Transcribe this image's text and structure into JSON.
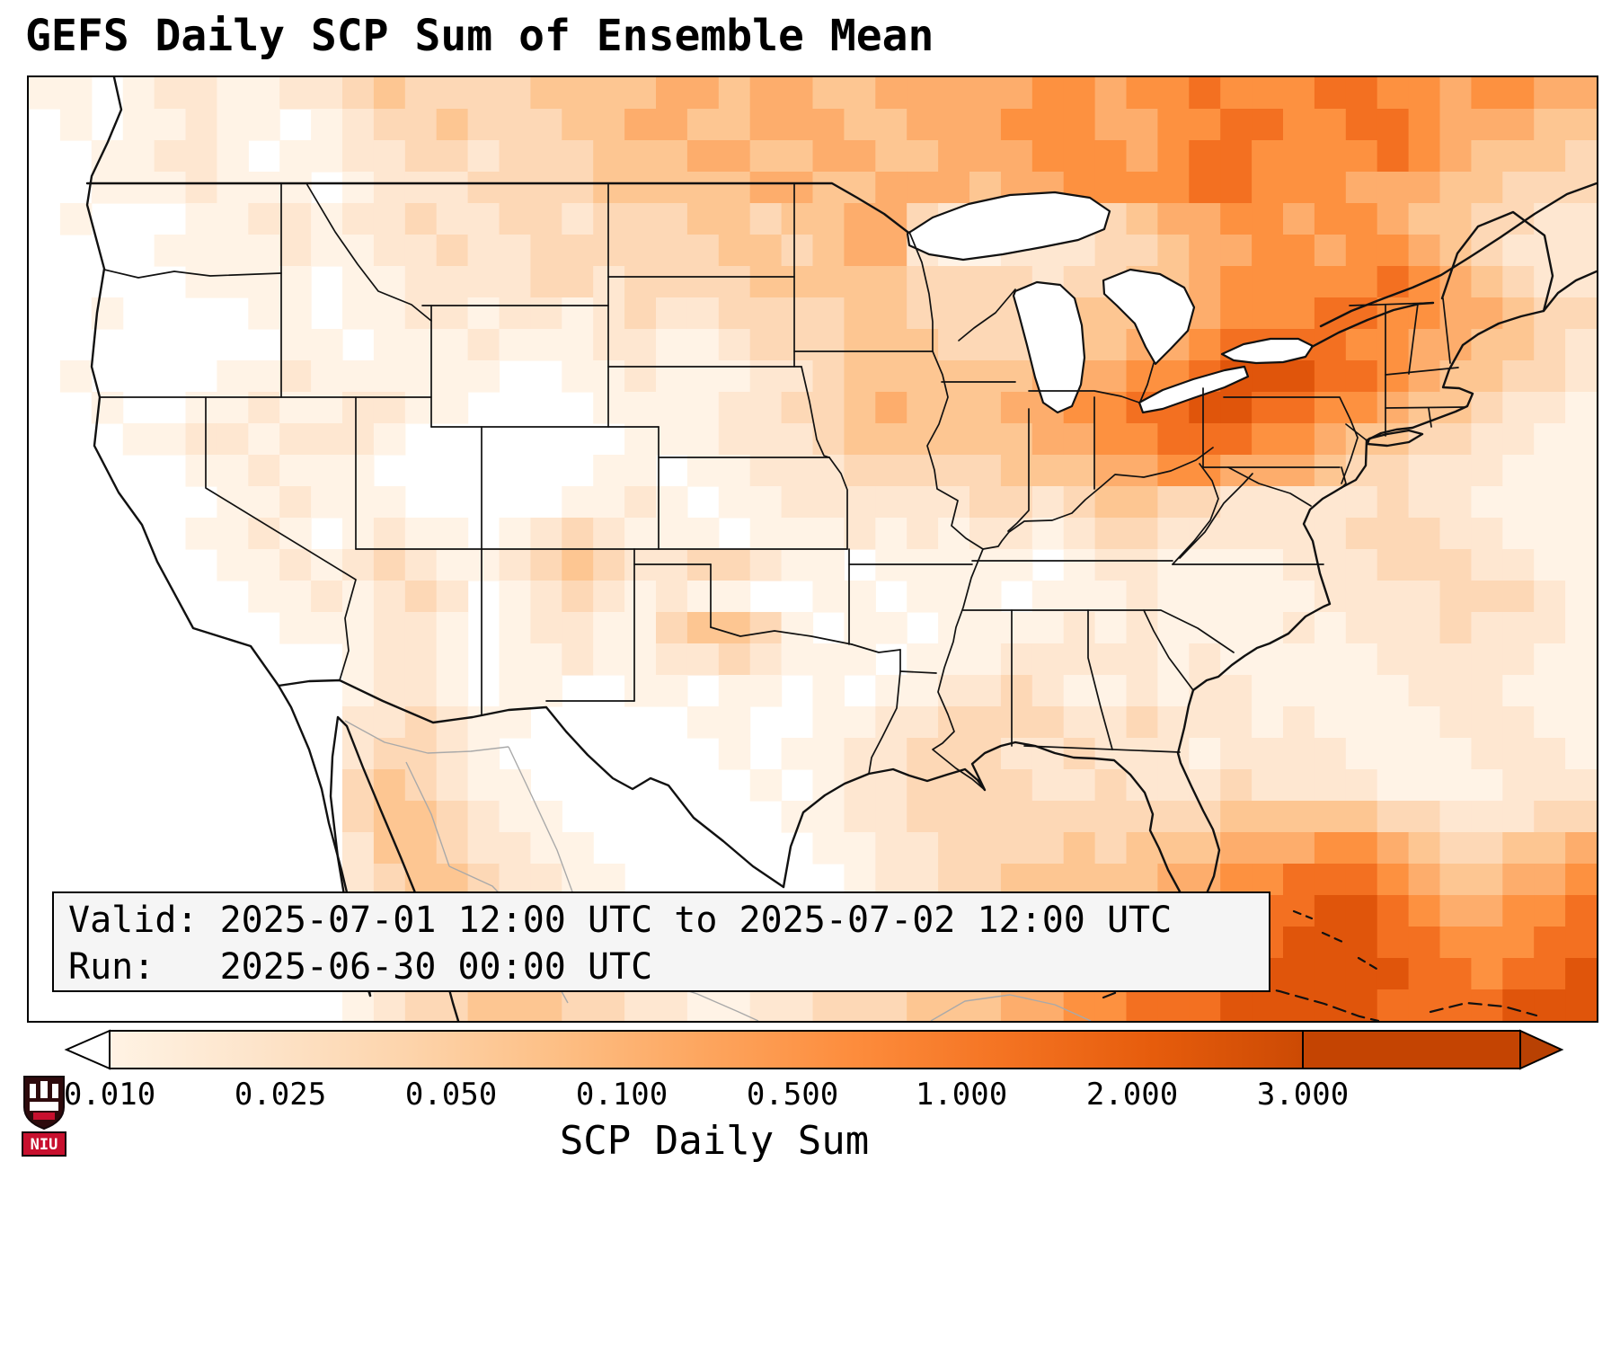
{
  "title": "GEFS Daily SCP Sum of Ensemble Mean",
  "info_box": {
    "valid_line": "Valid: 2025-07-01 12:00 UTC to 2025-07-02 12:00 UTC",
    "run_line": "Run:   2025-06-30 00:00 UTC"
  },
  "colorbar": {
    "label": "SCP Daily Sum",
    "ticks": [
      "0.010",
      "0.025",
      "0.050",
      "0.100",
      "0.500",
      "1.000",
      "2.000",
      "3.000"
    ],
    "gradient": [
      "#fff3e4",
      "#fde4ca",
      "#fdd4ab",
      "#fdbf85",
      "#fda55e",
      "#fd8c3c",
      "#f47322",
      "#e65c0c",
      "#cc4a04"
    ],
    "under_color": "#ffffff",
    "over_color": "#b84103",
    "extend_color": "#c44402"
  },
  "logo": {
    "text": "NIU",
    "red": "#c8102e",
    "shield": "#2e0a0c",
    "tower": "#ffffff"
  },
  "chart_data": {
    "type": "heatmap",
    "title": "GEFS Daily SCP Sum of Ensemble Mean",
    "field": "SCP Daily Sum (ensemble mean)",
    "region": "CONUS and surroundings",
    "valid": "2025-07-01 12:00 UTC to 2025-07-02 12:00 UTC",
    "run": "2025-06-30 00:00 UTC",
    "value_ticks": [
      0.01,
      0.025,
      0.05,
      0.1,
      0.5,
      1.0,
      2.0,
      3.0
    ],
    "colorbar_label": "SCP Daily Sum",
    "legend_position": "bottom",
    "grid": {
      "cols": 50,
      "rows": 30,
      "note": "intensity 0-9 indexes palette; approximate shaded SCP field, 0=white/no signal, 9=darkest orange (>3)",
      "palette": [
        "#ffffff",
        "#fff3e6",
        "#fee7d1",
        "#fdd8b6",
        "#fdc692",
        "#fdad6c",
        "#fd9140",
        "#f37021",
        "#e0550b",
        "#c54102"
      ],
      "rows_data": [
        "11012211223433334444554554455555665667666776656655",
        "01011211012334333445544555445556665566776677655544",
        "00112210112233233344455445544555666567766667654443",
        "00111211101222333344444554455545566667766655544333",
        "01000112212232233233344344553223323455665665443322",
        "00001111211223223333334434552112223345566566543222",
        "00000111101122223323333444443333233445666667654322",
        "00100001101122122123223333443333344455666776655433",
        "00000000110111211122112333444333444556777766554432",
        "01000011211111100112111223444444555667888776544332",
        "00100112112211000011112233454445566778877665443221",
        "00011221222100000001112223444444556677766544332211",
        "00000112111000000011011222333334445566555433222111",
        "00000011211100000112101122222233234433222223221111",
        "00000112101211012321110111212122123322222233322111",
        "00000011212321123432233211011111012211112223332211",
        "00000001121232012321211001101110111211111222233321",
        "00000000111221012211344310110111121211112122232221",
        "00000000001221011211223211101112222212111112222211",
        "00000000001221011001101101011223211212211111222111",
        "00000000002232110000011001122333322322212111122211",
        "00000000002332100000001011223332232221222211112221",
        "00000000003432110000000101223333223222322221111222",
        "00000000003443211000000011223333333333444443322233",
        "00000000002443221100000001122333343444555665433445",
        "00000000002344322110000000122334444455667776544556",
        "00000000001344332211000001123334445556677887655667",
        "00000000001244433221000011223333445566778887766677",
        "00000000001234443322100112233444556667788888776778",
        "00000000001233444332211223334445566777888887777888"
      ]
    }
  }
}
